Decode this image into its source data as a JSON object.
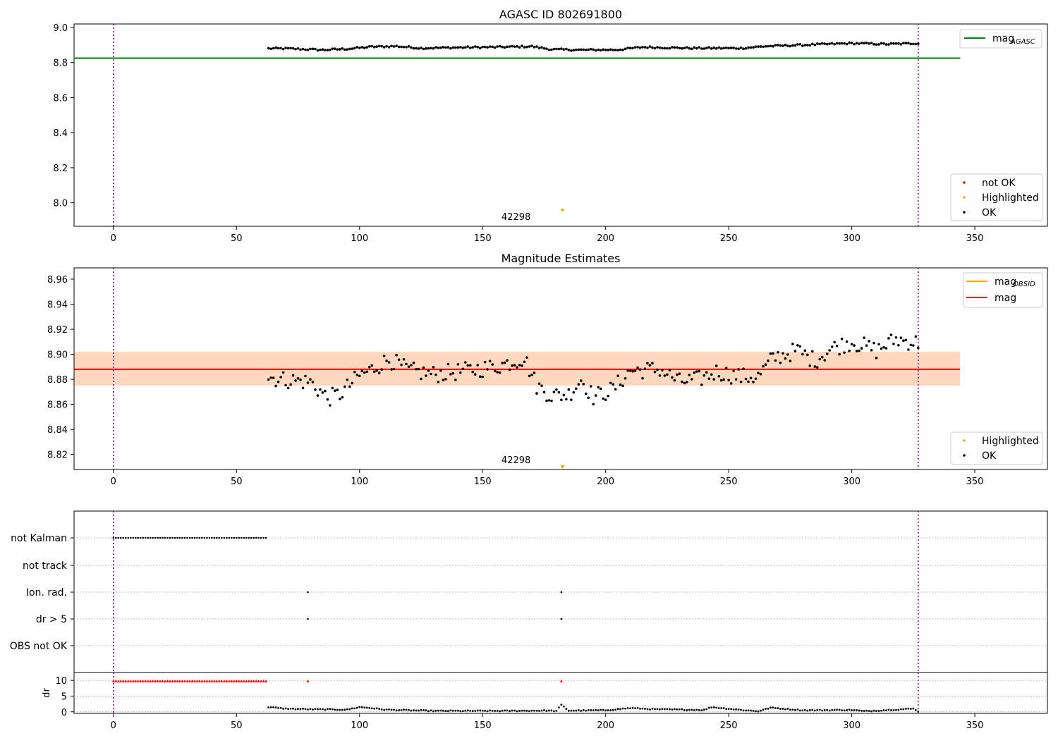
{
  "chart_data": [
    {
      "type": "scatter",
      "title": "AGASC ID 802691800",
      "xlim": [
        -16,
        379.5
      ],
      "ylim": [
        7.866,
        9.02
      ],
      "xticks": [
        0,
        50,
        100,
        150,
        200,
        250,
        300,
        350
      ],
      "yticks": [
        8.0,
        8.2,
        8.4,
        8.6,
        8.8,
        9.0
      ],
      "vlines": [
        0,
        327
      ],
      "hline": {
        "y": 8.825,
        "x0": -16,
        "x1": 344,
        "color": "#008000"
      },
      "series": [
        {
          "name": "not OK",
          "color": "#ff0000",
          "points": []
        },
        {
          "name": "Highlighted",
          "color": "#ffa500",
          "points": [
            [
              182.5,
              7.96
            ]
          ]
        },
        {
          "name": "OK",
          "color": "#000000",
          "trend": [
            [
              63,
              8.88
            ],
            [
              70,
              8.88
            ],
            [
              85,
              8.872
            ],
            [
              95,
              8.878
            ],
            [
              105,
              8.89
            ],
            [
              115,
              8.893
            ],
            [
              125,
              8.882
            ],
            [
              140,
              8.886
            ],
            [
              155,
              8.888
            ],
            [
              170,
              8.892
            ],
            [
              178,
              8.875
            ],
            [
              190,
              8.872
            ],
            [
              205,
              8.873
            ],
            [
              215,
              8.888
            ],
            [
              235,
              8.882
            ],
            [
              255,
              8.882
            ],
            [
              265,
              8.893
            ],
            [
              280,
              8.9
            ],
            [
              300,
              8.91
            ],
            [
              315,
              8.905
            ],
            [
              327,
              8.91
            ]
          ],
          "xstart": 63,
          "xend": 327,
          "step": 1,
          "jitter": 0.005
        }
      ],
      "annotations": [
        {
          "x": 182.5,
          "text": "42298"
        }
      ],
      "legend": {
        "position": "lower-right",
        "items": [
          "not OK",
          "Highlighted",
          "OK"
        ]
      },
      "line_legend": {
        "position": "upper-right",
        "items": [
          {
            "label": "mag",
            "sub": "AGASC",
            "color": "#008000"
          }
        ]
      }
    },
    {
      "type": "scatter",
      "title": "Magnitude Estimates",
      "xlim": [
        -16,
        379.5
      ],
      "ylim": [
        8.808,
        8.969
      ],
      "xticks": [
        0,
        50,
        100,
        150,
        200,
        250,
        300,
        350
      ],
      "yticks": [
        8.82,
        8.84,
        8.86,
        8.88,
        8.9,
        8.92,
        8.94,
        8.96
      ],
      "vlines": [
        0,
        327
      ],
      "bands": [
        {
          "y0": 8.875,
          "y1": 8.902,
          "x0": -16,
          "x1": 344,
          "color": "#ffc0cb",
          "opacity": 0.45
        },
        {
          "y0": 8.875,
          "y1": 8.902,
          "x0": -16,
          "x1": 344,
          "color": "#ffa500",
          "opacity": 0.18
        }
      ],
      "mag_line": {
        "y": 8.888,
        "x0": -16,
        "x1": 344,
        "color": "#ff0000"
      },
      "series": [
        {
          "name": "Highlighted",
          "color": "#ffa500",
          "points": [
            [
              182.5,
              8.809
            ]
          ]
        },
        {
          "name": "OK",
          "color": "#000000",
          "trend": [
            [
              63,
              8.882
            ],
            [
              68,
              8.88
            ],
            [
              80,
              8.878
            ],
            [
              87,
              8.865
            ],
            [
              92,
              8.868
            ],
            [
              100,
              8.883
            ],
            [
              105,
              8.888
            ],
            [
              112,
              8.896
            ],
            [
              120,
              8.887
            ],
            [
              130,
              8.884
            ],
            [
              140,
              8.886
            ],
            [
              155,
              8.89
            ],
            [
              167,
              8.897
            ],
            [
              172,
              8.875
            ],
            [
              178,
              8.867
            ],
            [
              185,
              8.868
            ],
            [
              190,
              8.88
            ],
            [
              195,
              8.866
            ],
            [
              203,
              8.872
            ],
            [
              210,
              8.887
            ],
            [
              222,
              8.888
            ],
            [
              230,
              8.878
            ],
            [
              238,
              8.88
            ],
            [
              245,
              8.886
            ],
            [
              255,
              8.882
            ],
            [
              262,
              8.882
            ],
            [
              268,
              8.897
            ],
            [
              278,
              8.903
            ],
            [
              285,
              8.895
            ],
            [
              292,
              8.905
            ],
            [
              300,
              8.91
            ],
            [
              310,
              8.903
            ],
            [
              318,
              8.912
            ],
            [
              327,
              8.909
            ]
          ],
          "xstart": 63,
          "xend": 327,
          "step": 1,
          "jitter": 0.007
        }
      ],
      "annotations": [
        {
          "x": 182.5,
          "text": "42298"
        }
      ],
      "legend": {
        "position": "lower-right",
        "items": [
          "Highlighted",
          "OK"
        ]
      },
      "line_legend": {
        "position": "upper-right",
        "items": [
          {
            "label": "mag",
            "sub": "OBSID",
            "color": "#ffa500"
          },
          {
            "label": "mag",
            "sub": "",
            "color": "#ff0000"
          }
        ]
      }
    },
    {
      "type": "scatter",
      "title": "",
      "xlim": [
        -16,
        379.5
      ],
      "categories": [
        "not Kalman",
        "not track",
        "Ion. rad.",
        "dr > 5",
        "OBS not OK"
      ],
      "flags": {
        "not Kalman": {
          "x_from": 0,
          "x_to": 62,
          "step": 1
        },
        "not track": {
          "x": []
        },
        "Ion. rad.": {
          "x": [
            79,
            182
          ]
        },
        "dr > 5": {
          "x": [
            79,
            182
          ]
        },
        "OBS not OK": {
          "x": []
        }
      },
      "vlines": [
        0,
        327
      ]
    },
    {
      "type": "scatter",
      "title": "",
      "xlim": [
        -16,
        379.5
      ],
      "ylim": [
        -0.5,
        12.5
      ],
      "ylabel": "dr",
      "xticks": [
        0,
        50,
        100,
        150,
        200,
        250,
        300,
        350
      ],
      "yticks": [
        0,
        5,
        10
      ],
      "vlines": [
        0,
        327
      ],
      "series": [
        {
          "name": "red",
          "color": "#ff0000",
          "marker": "triangle",
          "xfrom": 0,
          "xto": 62,
          "step": 1,
          "y": 9.8,
          "extra_x": [
            79,
            182
          ]
        },
        {
          "name": "black",
          "color": "#000000",
          "trend": [
            [
              63,
              1.5
            ],
            [
              70,
              1.0
            ],
            [
              80,
              0.8
            ],
            [
              95,
              0.7
            ],
            [
              100,
              1.5
            ],
            [
              105,
              1.2
            ],
            [
              110,
              0.7
            ],
            [
              130,
              0.3
            ],
            [
              160,
              0.3
            ],
            [
              175,
              0.4
            ],
            [
              180,
              0.3
            ],
            [
              182,
              2.2
            ],
            [
              185,
              0.4
            ],
            [
              200,
              0.5
            ],
            [
              210,
              1.2
            ],
            [
              220,
              0.8
            ],
            [
              240,
              0.6
            ],
            [
              243,
              1.5
            ],
            [
              255,
              0.6
            ],
            [
              262,
              0.2
            ],
            [
              267,
              1.3
            ],
            [
              280,
              0.5
            ],
            [
              300,
              0.6
            ],
            [
              305,
              0.2
            ],
            [
              320,
              0.8
            ],
            [
              325,
              1.0
            ],
            [
              327,
              0.2
            ]
          ],
          "xstart": 63,
          "xend": 327,
          "step": 1,
          "jitter": 0.15
        }
      ]
    }
  ]
}
